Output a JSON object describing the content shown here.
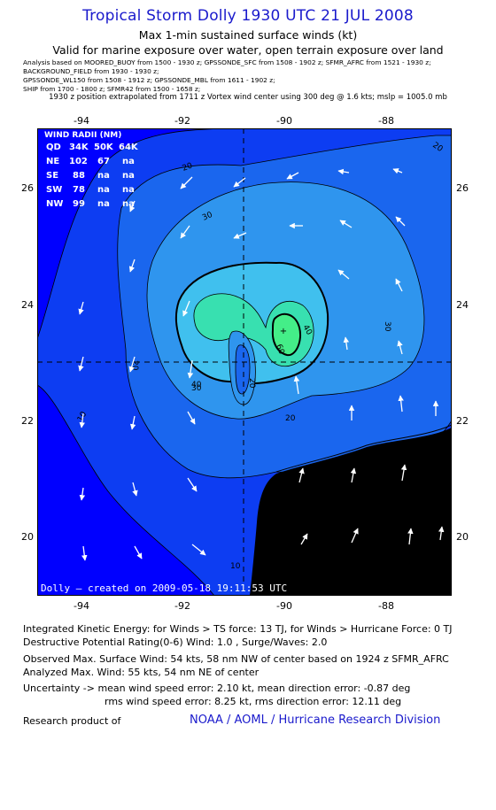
{
  "header": {
    "title": "Tropical Storm Dolly 1930 UTC 21 JUL 2008",
    "subtitle1": "Max 1-min sustained surface winds (kt)",
    "subtitle2": "Valid for marine exposure over water, open terrain exposure over land",
    "analysis_lines": [
      "Analysis based on   MOORED_BUOY from 1500 - 1930 z;   GPSSONDE_SFC from 1508 - 1902 z;   SFMR_AFRC from 1521 - 1930 z;",
      "BACKGROUND_FIELD from 1930 - 1930 z;",
      "GPSSONDE_WL150 from 1508 - 1912 z;   GPSSONDE_MBL from 1611 - 1902 z;",
      "SHIP from 1700 - 1800 z;   SFMR42 from 1500 - 1658 z;"
    ],
    "position_line": "1930 z position extrapolated from 1711 z Vortex wind center using 300 deg @ 1.6 kts; mslp = 1005.0 mb"
  },
  "map": {
    "lon_ticks": [
      "-94",
      "-92",
      "-90",
      "-88"
    ],
    "lat_ticks": [
      "26",
      "24",
      "22",
      "20"
    ],
    "wind_radii": {
      "title": "WIND RADII (NM)",
      "header": [
        "QD",
        "34K",
        "50K",
        "64K"
      ],
      "rows": [
        [
          "NE",
          "102",
          "67",
          "na"
        ],
        [
          "SE",
          "88",
          "na",
          "na"
        ],
        [
          "SW",
          "78",
          "na",
          "na"
        ],
        [
          "NW",
          "99",
          "na",
          "na"
        ]
      ]
    },
    "contour_labels": [
      "20",
      "30",
      "40",
      "50",
      "60",
      "10"
    ],
    "created_text": "Dolly – created on 2009-05-18 19:11:53 UTC",
    "colors": {
      "background": "#0000ff",
      "wind_10_20": "#0d3df2",
      "wind_20_30": "#1a66ee",
      "wind_30_40": "#2f95ee",
      "wind_40_50": "#40c0ee",
      "wind_50_60": "#38e0b0",
      "wind_60": "#44ee88",
      "land": "#000000"
    }
  },
  "footer": {
    "ike": "Integrated Kinetic Energy:  for Winds > TS force: 13 TJ,  for Winds > Hurricane Force: 0 TJ",
    "dpr": "Destructive Potential Rating(0-6)   Wind: 1.0 , Surge/Waves: 2.0",
    "obs": "Observed Max. Surface Wind: 54 kts, 58 nm NW of center based on 1924 z SFMR_AFRC",
    "ana": "Analyzed Max. Wind: 55 kts, 54 nm NE of center",
    "unc": "Uncertainty -> mean wind speed error: 2.10 kt,   mean direction error:  -0.87 deg",
    "rms": "rms wind speed error: 8.25 kt,   rms direction error: 12.11 deg",
    "research": "Research product of",
    "org": "NOAA / AOML / Hurricane Research Division"
  }
}
